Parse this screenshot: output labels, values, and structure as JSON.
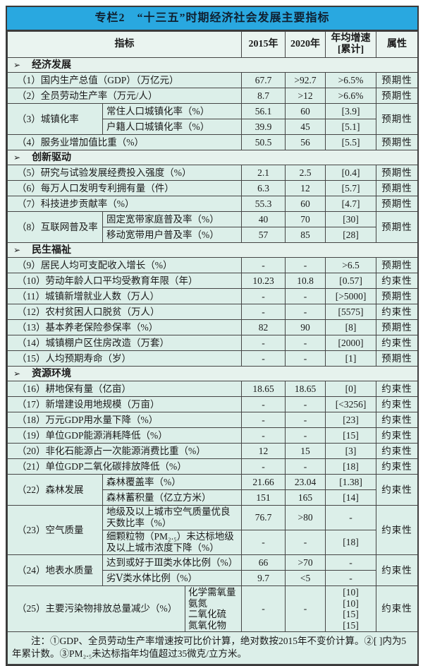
{
  "title": "专栏2　“十三五”时期经济社会发展主要指标",
  "colors": {
    "title_bg": "#29a8e0",
    "row_bg": "#dcefe9",
    "section_bg": "#e6f2ed",
    "border": "#454545"
  },
  "header": {
    "indicator": "指标",
    "y2015": "2015年",
    "y2020": "2020年",
    "growth_line1": "年均增速",
    "growth_line2": "[累计]",
    "attr": "属性"
  },
  "table": {
    "marker": "➢",
    "rows": [
      {
        "type": "section",
        "label": "经济发展"
      },
      {
        "type": "simple",
        "label": "（1）国内生产总值（GDP）（万亿元）",
        "y2015": "67.7",
        "y2020": ">92.7",
        "growth": ">6.5%",
        "attr": "预期性"
      },
      {
        "type": "simple",
        "label": "（2）全员劳动生产率（万元/人）",
        "y2015": "8.7",
        "y2020": ">12",
        "growth": ">6.6%",
        "attr": "预期性"
      },
      {
        "type": "group",
        "label": "（3）城镇化率",
        "attr": "预期性",
        "subs": [
          {
            "label": "常住人口城镇化率（%）",
            "y2015": "56.1",
            "y2020": "60",
            "growth": "[3.9]"
          },
          {
            "label": "户籍人口城镇化率（%）",
            "y2015": "39.9",
            "y2020": "45",
            "growth": "[5.1]"
          }
        ]
      },
      {
        "type": "simple",
        "label": "（4）服务业增加值比重（%）",
        "y2015": "50.5",
        "y2020": "56",
        "growth": "[5.5]",
        "attr": "预期性"
      },
      {
        "type": "section",
        "label": "创新驱动"
      },
      {
        "type": "simple",
        "label": "（5）研究与试验发展经费投入强度（%）",
        "y2015": "2.1",
        "y2020": "2.5",
        "growth": "[0.4]",
        "attr": "预期性"
      },
      {
        "type": "simple",
        "label": "（6）每万人口发明专利拥有量（件）",
        "y2015": "6.3",
        "y2020": "12",
        "growth": "[5.7]",
        "attr": "预期性"
      },
      {
        "type": "simple",
        "label": "（7）科技进步贡献率（%）",
        "y2015": "55.3",
        "y2020": "60",
        "growth": "[4.7]",
        "attr": "预期性"
      },
      {
        "type": "group",
        "label": "（8）互联网普及率",
        "attr": "预期性",
        "subs": [
          {
            "label": "固定宽带家庭普及率（%）",
            "y2015": "40",
            "y2020": "70",
            "growth": "[30]"
          },
          {
            "label": "移动宽带用户普及率（%）",
            "y2015": "57",
            "y2020": "85",
            "growth": "[28]"
          }
        ]
      },
      {
        "type": "section",
        "label": "民生福祉"
      },
      {
        "type": "simple",
        "label": "（9）居民人均可支配收入增长（%）",
        "y2015": "-",
        "y2020": "-",
        "growth": ">6.5",
        "attr": "预期性"
      },
      {
        "type": "simple",
        "label": "（10）劳动年龄人口平均受教育年限（年）",
        "y2015": "10.23",
        "y2020": "10.8",
        "growth": "[0.57]",
        "attr": "约束性"
      },
      {
        "type": "simple",
        "label": "（11）城镇新增就业人数（万人）",
        "y2015": "-",
        "y2020": "-",
        "growth": "[>5000]",
        "attr": "预期性"
      },
      {
        "type": "simple",
        "label": "（12）农村贫困人口脱贫（万人）",
        "y2015": "-",
        "y2020": "-",
        "growth": "[5575]",
        "attr": "约束性"
      },
      {
        "type": "simple",
        "label": "（13）基本养老保险参保率（%）",
        "y2015": "82",
        "y2020": "90",
        "growth": "[8]",
        "attr": "预期性"
      },
      {
        "type": "simple",
        "label": "（14）城镇棚户区住房改造（万套）",
        "y2015": "-",
        "y2020": "-",
        "growth": "[2000]",
        "attr": "约束性"
      },
      {
        "type": "simple",
        "label": "（15）人均预期寿命（岁）",
        "y2015": "-",
        "y2020": "-",
        "growth": "[1]",
        "attr": "预期性"
      },
      {
        "type": "section",
        "label": "资源环境"
      },
      {
        "type": "simple",
        "label": "（16）耕地保有量（亿亩）",
        "y2015": "18.65",
        "y2020": "18.65",
        "growth": "[0]",
        "attr": "约束性"
      },
      {
        "type": "simple",
        "label": "（17）新增建设用地规模（万亩）",
        "y2015": "-",
        "y2020": "-",
        "growth": "[<3256]",
        "attr": "约束性"
      },
      {
        "type": "simple",
        "label": "（18）万元GDP用水量下降（%）",
        "y2015": "-",
        "y2020": "-",
        "growth": "[23]",
        "attr": "约束性"
      },
      {
        "type": "simple",
        "label": "（19）单位GDP能源消耗降低（%）",
        "y2015": "-",
        "y2020": "-",
        "growth": "[15]",
        "attr": "约束性"
      },
      {
        "type": "simple",
        "label": "（20）非化石能源占一次能源消费比重（%）",
        "y2015": "12",
        "y2020": "15",
        "growth": "[3]",
        "attr": "约束性"
      },
      {
        "type": "simple",
        "label": "（21）单位GDP二氧化碳排放降低（%）",
        "y2015": "-",
        "y2020": "-",
        "growth": "[18]",
        "attr": "约束性"
      },
      {
        "type": "group",
        "label": "（22）森林发展",
        "attr": "约束性",
        "subs": [
          {
            "label": "森林覆盖率（%）",
            "y2015": "21.66",
            "y2020": "23.04",
            "growth": "[1.38]"
          },
          {
            "label": "森林蓄积量（亿立方米）",
            "y2015": "151",
            "y2020": "165",
            "growth": "[14]"
          }
        ]
      },
      {
        "type": "group",
        "label": "（23）空气质量",
        "attr": "约束性",
        "subs": [
          {
            "label": "地级及以上城市空气质量优良天数比率（%）",
            "y2015": "76.7",
            "y2020": ">80",
            "growth": "-"
          },
          {
            "label": "细颗粒物（PM₂.₅）未达标地级及以上城市浓度下降（%）",
            "y2015": "-",
            "y2020": "-",
            "growth": "[18]"
          }
        ]
      },
      {
        "type": "group",
        "label": "（24）地表水质量",
        "attr": "约束性",
        "subs": [
          {
            "label": "达到或好于Ⅲ类水体比例（%）",
            "y2015": "66",
            "y2020": ">70",
            "growth": "-"
          },
          {
            "label": "劣Ⅴ类水体比例（%）",
            "y2015": "9.7",
            "y2020": "<5",
            "growth": "-"
          }
        ]
      },
      {
        "type": "group_multi",
        "label": "（25）主要污染物排放总量减少（%）",
        "attr": "约束性",
        "sublabels": [
          "化学需氧量",
          "氨氮",
          "二氧化硫",
          "氮氧化物"
        ],
        "y2015": "-",
        "y2020": "-",
        "growths": [
          "[10]",
          "[10]",
          "[15]",
          "[15]"
        ]
      }
    ]
  },
  "note": "注：①GDP、全员劳动生产率增速按可比价计算，绝对数按2015年不变价计算。②[ ]内为5年累计数。③PM₂.₅未达标指年均值超过35微克/立方米。"
}
